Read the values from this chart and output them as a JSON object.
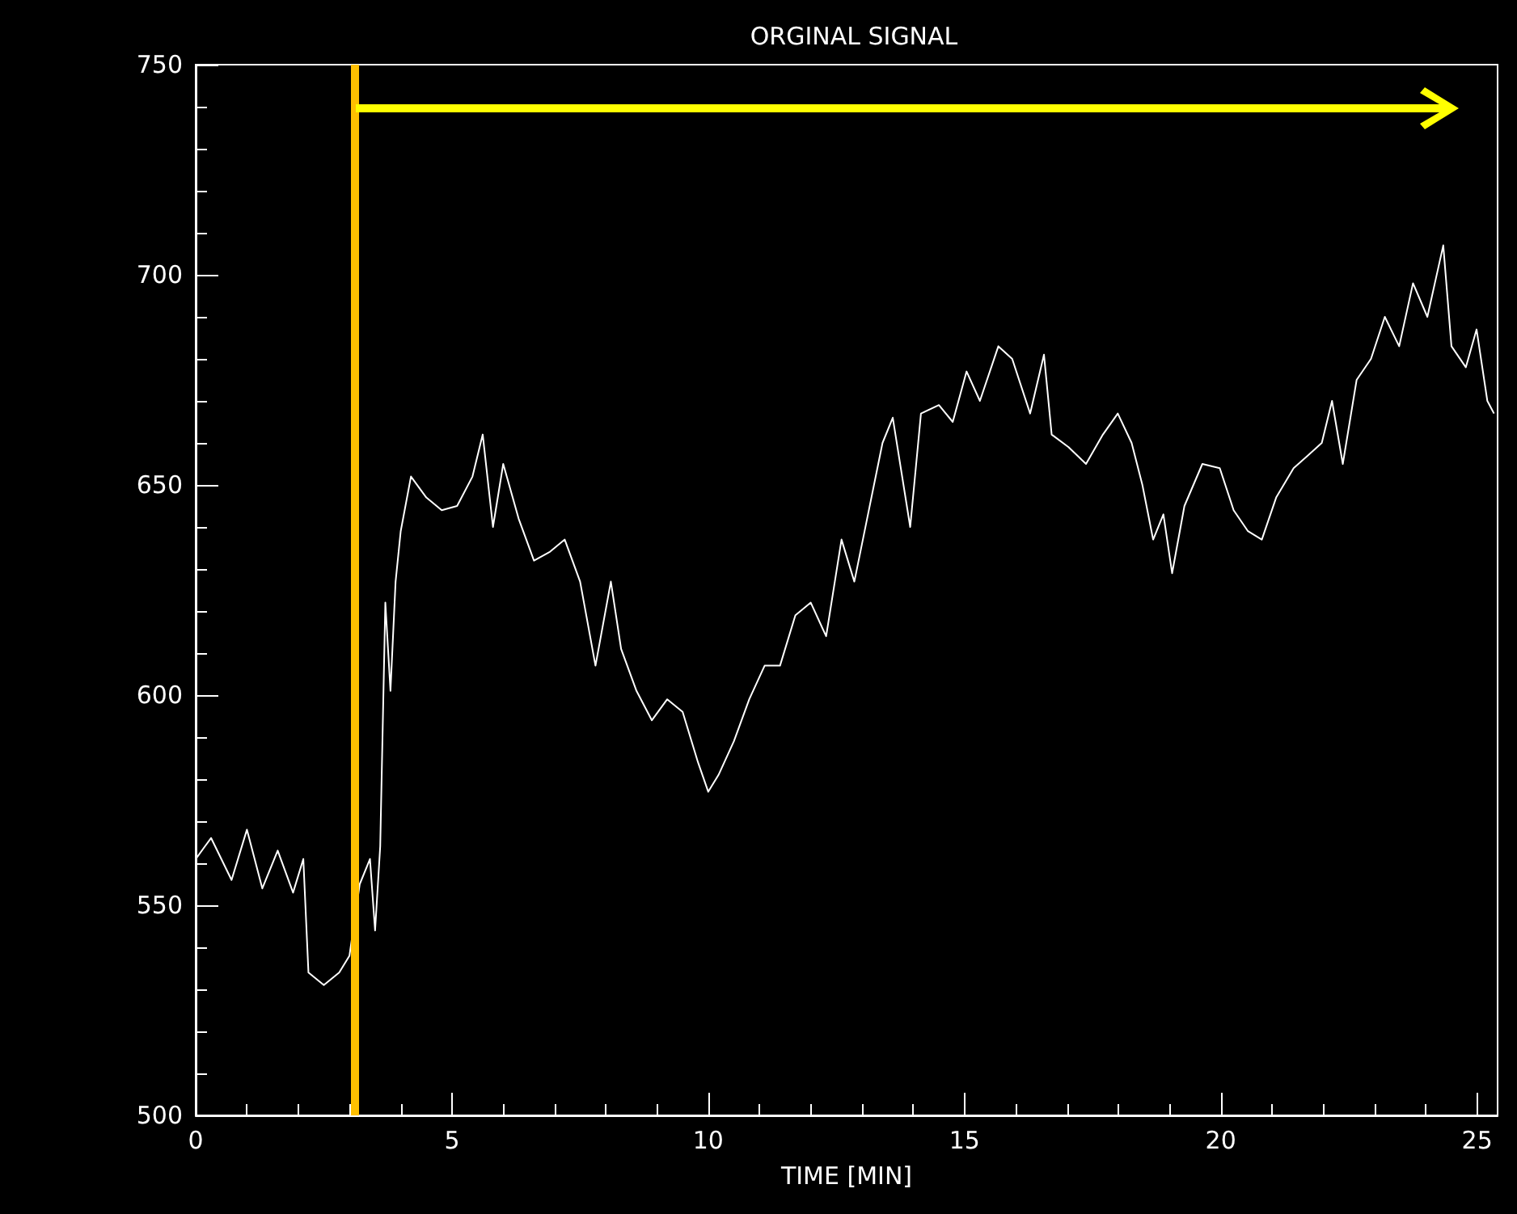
{
  "chart_data": {
    "type": "line",
    "title": "ORGINAL SIGNAL",
    "xlabel": "TIME [MIN]",
    "xlim": [
      0,
      25.4
    ],
    "xticks": [
      0,
      5,
      10,
      15,
      20,
      25
    ],
    "ylim": [
      500,
      750
    ],
    "yticks": [
      500,
      550,
      600,
      650,
      700,
      750
    ],
    "grid": false,
    "marker": "none",
    "ref_lines": [
      {
        "axis": "x",
        "value": 3.1,
        "color": "#ffc000"
      }
    ],
    "series": [
      {
        "color": "#ffffff",
        "x": [
          0,
          0.3,
          0.7,
          1.0,
          1.3,
          1.6,
          1.9,
          2.1,
          2.2,
          2.5,
          2.8,
          3.0,
          3.2,
          3.4,
          3.5,
          3.6,
          3.7,
          3.8,
          3.9,
          4.0,
          4.2,
          4.5,
          4.8,
          5.1,
          5.4,
          5.6,
          5.8,
          6.0,
          6.3,
          6.6,
          6.9,
          7.2,
          7.5,
          7.8,
          8.1,
          8.3,
          8.6,
          8.9,
          9.2,
          9.5,
          9.8,
          10.0,
          10.2,
          10.5,
          10.8,
          11.1,
          11.4,
          11.7,
          12.0,
          12.3,
          12.6,
          12.85,
          13.4,
          13.6,
          13.94,
          14.15,
          14.5,
          14.77,
          15.04,
          15.3,
          15.66,
          15.93,
          16.28,
          16.55,
          16.7,
          17.03,
          17.37,
          17.7,
          17.99,
          18.26,
          18.47,
          18.68,
          18.88,
          19.05,
          19.29,
          19.64,
          19.98,
          20.25,
          20.53,
          20.8,
          21.08,
          21.42,
          21.7,
          21.97,
          22.17,
          22.38,
          22.65,
          22.93,
          23.2,
          23.48,
          23.75,
          24.03,
          24.34,
          24.5,
          24.78,
          24.99,
          25.2,
          25.33
        ],
        "values": [
          561,
          566,
          556,
          568,
          554,
          563,
          553,
          561,
          534,
          531,
          534,
          538,
          555,
          561,
          544,
          564,
          622,
          601,
          627,
          639,
          652,
          647,
          644,
          645,
          652,
          662,
          640,
          655,
          642,
          632,
          634,
          637,
          627,
          607,
          627,
          611,
          601,
          594,
          599,
          596,
          584,
          577,
          581,
          589,
          599,
          607,
          607,
          619,
          622,
          614,
          637,
          627,
          660,
          666,
          640,
          667,
          669,
          665,
          677,
          670,
          683,
          680,
          667,
          681,
          662,
          659,
          655,
          662,
          667,
          660,
          650,
          637,
          643,
          629,
          645,
          655,
          654,
          644,
          639,
          637,
          647,
          654,
          657,
          660,
          670,
          655,
          675,
          680,
          690,
          683,
          698,
          690,
          707,
          683,
          678,
          687,
          670,
          667
        ]
      }
    ]
  }
}
